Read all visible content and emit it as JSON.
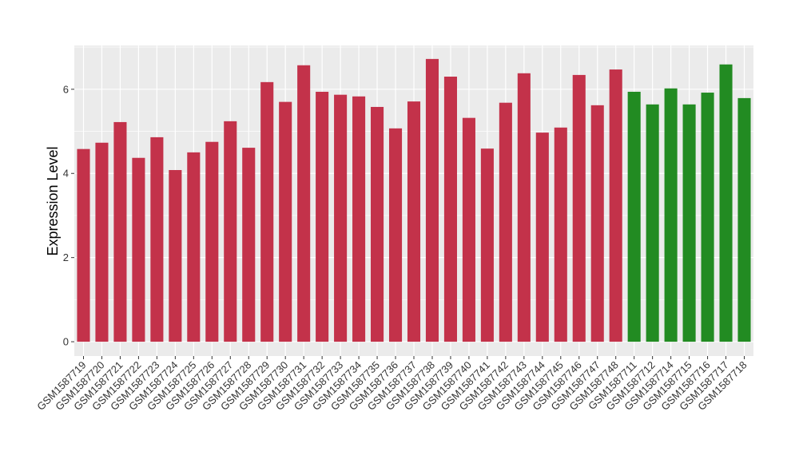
{
  "chart_data": {
    "type": "bar",
    "title": "",
    "xlabel": "",
    "ylabel": "Expression Level",
    "ylim": [
      -0.34,
      7.04
    ],
    "yticks": [
      0,
      2,
      4,
      6
    ],
    "grid": true,
    "legend": "none",
    "categories": [
      "GSM1587719",
      "GSM1587720",
      "GSM1587721",
      "GSM1587722",
      "GSM1587723",
      "GSM1587724",
      "GSM1587725",
      "GSM1587726",
      "GSM1587727",
      "GSM1587728",
      "GSM1587729",
      "GSM1587730",
      "GSM1587731",
      "GSM1587732",
      "GSM1587733",
      "GSM1587734",
      "GSM1587735",
      "GSM1587736",
      "GSM1587737",
      "GSM1587738",
      "GSM1587739",
      "GSM1587740",
      "GSM1587741",
      "GSM1587742",
      "GSM1587743",
      "GSM1587744",
      "GSM1587745",
      "GSM1587746",
      "GSM1587747",
      "GSM1587748",
      "GSM1587711",
      "GSM1587712",
      "GSM1587714",
      "GSM1587715",
      "GSM1587716",
      "GSM1587717",
      "GSM1587718"
    ],
    "values": [
      4.58,
      4.73,
      5.22,
      4.37,
      4.86,
      4.08,
      4.5,
      4.75,
      5.24,
      4.61,
      6.17,
      5.7,
      6.57,
      5.94,
      5.87,
      5.83,
      5.58,
      5.07,
      5.71,
      6.72,
      6.3,
      5.32,
      4.59,
      5.68,
      6.38,
      4.97,
      5.09,
      6.34,
      5.62,
      6.47,
      5.94,
      5.64,
      6.02,
      5.64,
      5.92,
      6.59,
      5.79
    ],
    "groups": [
      "a",
      "a",
      "a",
      "a",
      "a",
      "a",
      "a",
      "a",
      "a",
      "a",
      "a",
      "a",
      "a",
      "a",
      "a",
      "a",
      "a",
      "a",
      "a",
      "a",
      "a",
      "a",
      "a",
      "a",
      "a",
      "a",
      "a",
      "a",
      "a",
      "a",
      "b",
      "b",
      "b",
      "b",
      "b",
      "b",
      "b"
    ],
    "colors": {
      "a": "#C3324A",
      "b": "#228B22",
      "panel": "#EBEBEB",
      "grid": "#FFFFFF"
    }
  }
}
